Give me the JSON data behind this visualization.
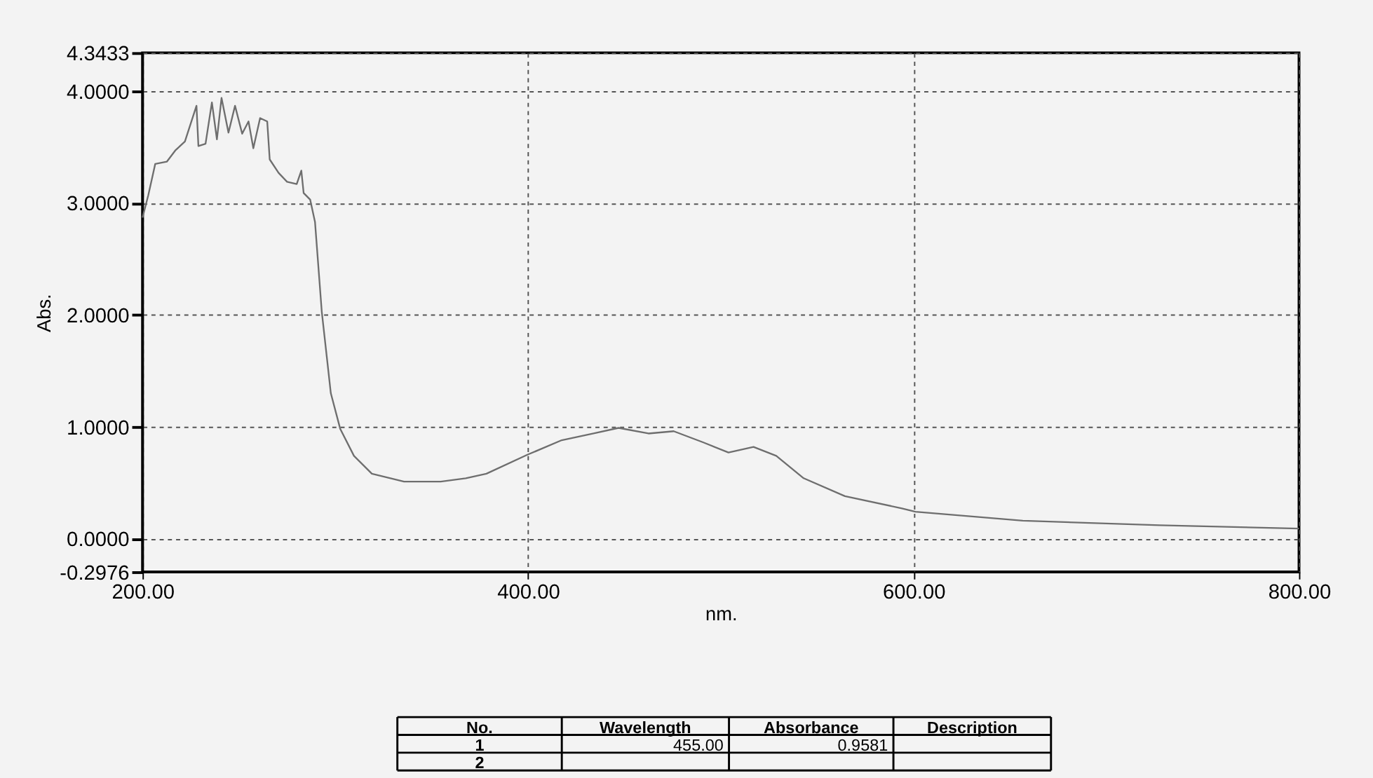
{
  "chart_data": {
    "type": "line",
    "xlabel": "nm.",
    "ylabel": "Abs.",
    "x": [
      200,
      203,
      206.6,
      212.6,
      217,
      222,
      228,
      229,
      232.7,
      236,
      238.6,
      241,
      244.6,
      248,
      251.7,
      255,
      257.5,
      261,
      264.7,
      266,
      270.6,
      275,
      280,
      282.4,
      283.6,
      287,
      289.5,
      293,
      297.7,
      302.6,
      309.7,
      319,
      335.7,
      354.7,
      367.7,
      378.4,
      399.7,
      417.5,
      434,
      447,
      462.5,
      475.6,
      491,
      504,
      517,
      528.8,
      543,
      564.4,
      594,
      601,
      656.7,
      727.8,
      800
    ],
    "series": [
      {
        "color": "#6e6e6e",
        "values": [
          2.87,
          3.07,
          3.35,
          3.37,
          3.47,
          3.55,
          3.87,
          3.51,
          3.53,
          3.9,
          3.57,
          3.94,
          3.63,
          3.87,
          3.62,
          3.73,
          3.49,
          3.76,
          3.73,
          3.39,
          3.27,
          3.19,
          3.17,
          3.29,
          3.09,
          3.03,
          2.83,
          2.03,
          1.3,
          0.98,
          0.74,
          0.58,
          0.51,
          0.51,
          0.54,
          0.58,
          0.75,
          0.88,
          0.94,
          0.99,
          0.94,
          0.96,
          0.86,
          0.77,
          0.82,
          0.74,
          0.54,
          0.38,
          0.27,
          0.24,
          0.16,
          0.12,
          0.09
        ]
      }
    ],
    "xlim": [
      200,
      800
    ],
    "xticks": [
      {
        "value": 200,
        "label": "200.00"
      },
      {
        "value": 400,
        "label": "400.00"
      },
      {
        "value": 600,
        "label": "600.00"
      },
      {
        "value": 800,
        "label": "800.00"
      }
    ],
    "ylim": [
      -0.2976,
      4.3433
    ],
    "yticks": [
      {
        "value": -0.2976,
        "label": "-0.2976"
      },
      {
        "value": 0,
        "label": "0.0000"
      },
      {
        "value": 1,
        "label": "1.0000"
      },
      {
        "value": 2,
        "label": "2.0000"
      },
      {
        "value": 3,
        "label": "3.0000"
      },
      {
        "value": 4,
        "label": "4.0000"
      },
      {
        "value": 4.3433,
        "label": "4.3433"
      }
    ],
    "grid": true,
    "line_style": "solid",
    "marker": "none",
    "annotations": [
      "No.",
      "Wavelength",
      "Absorbance",
      "Description",
      "1",
      "455.00",
      "0.9581",
      "2"
    ]
  }
}
